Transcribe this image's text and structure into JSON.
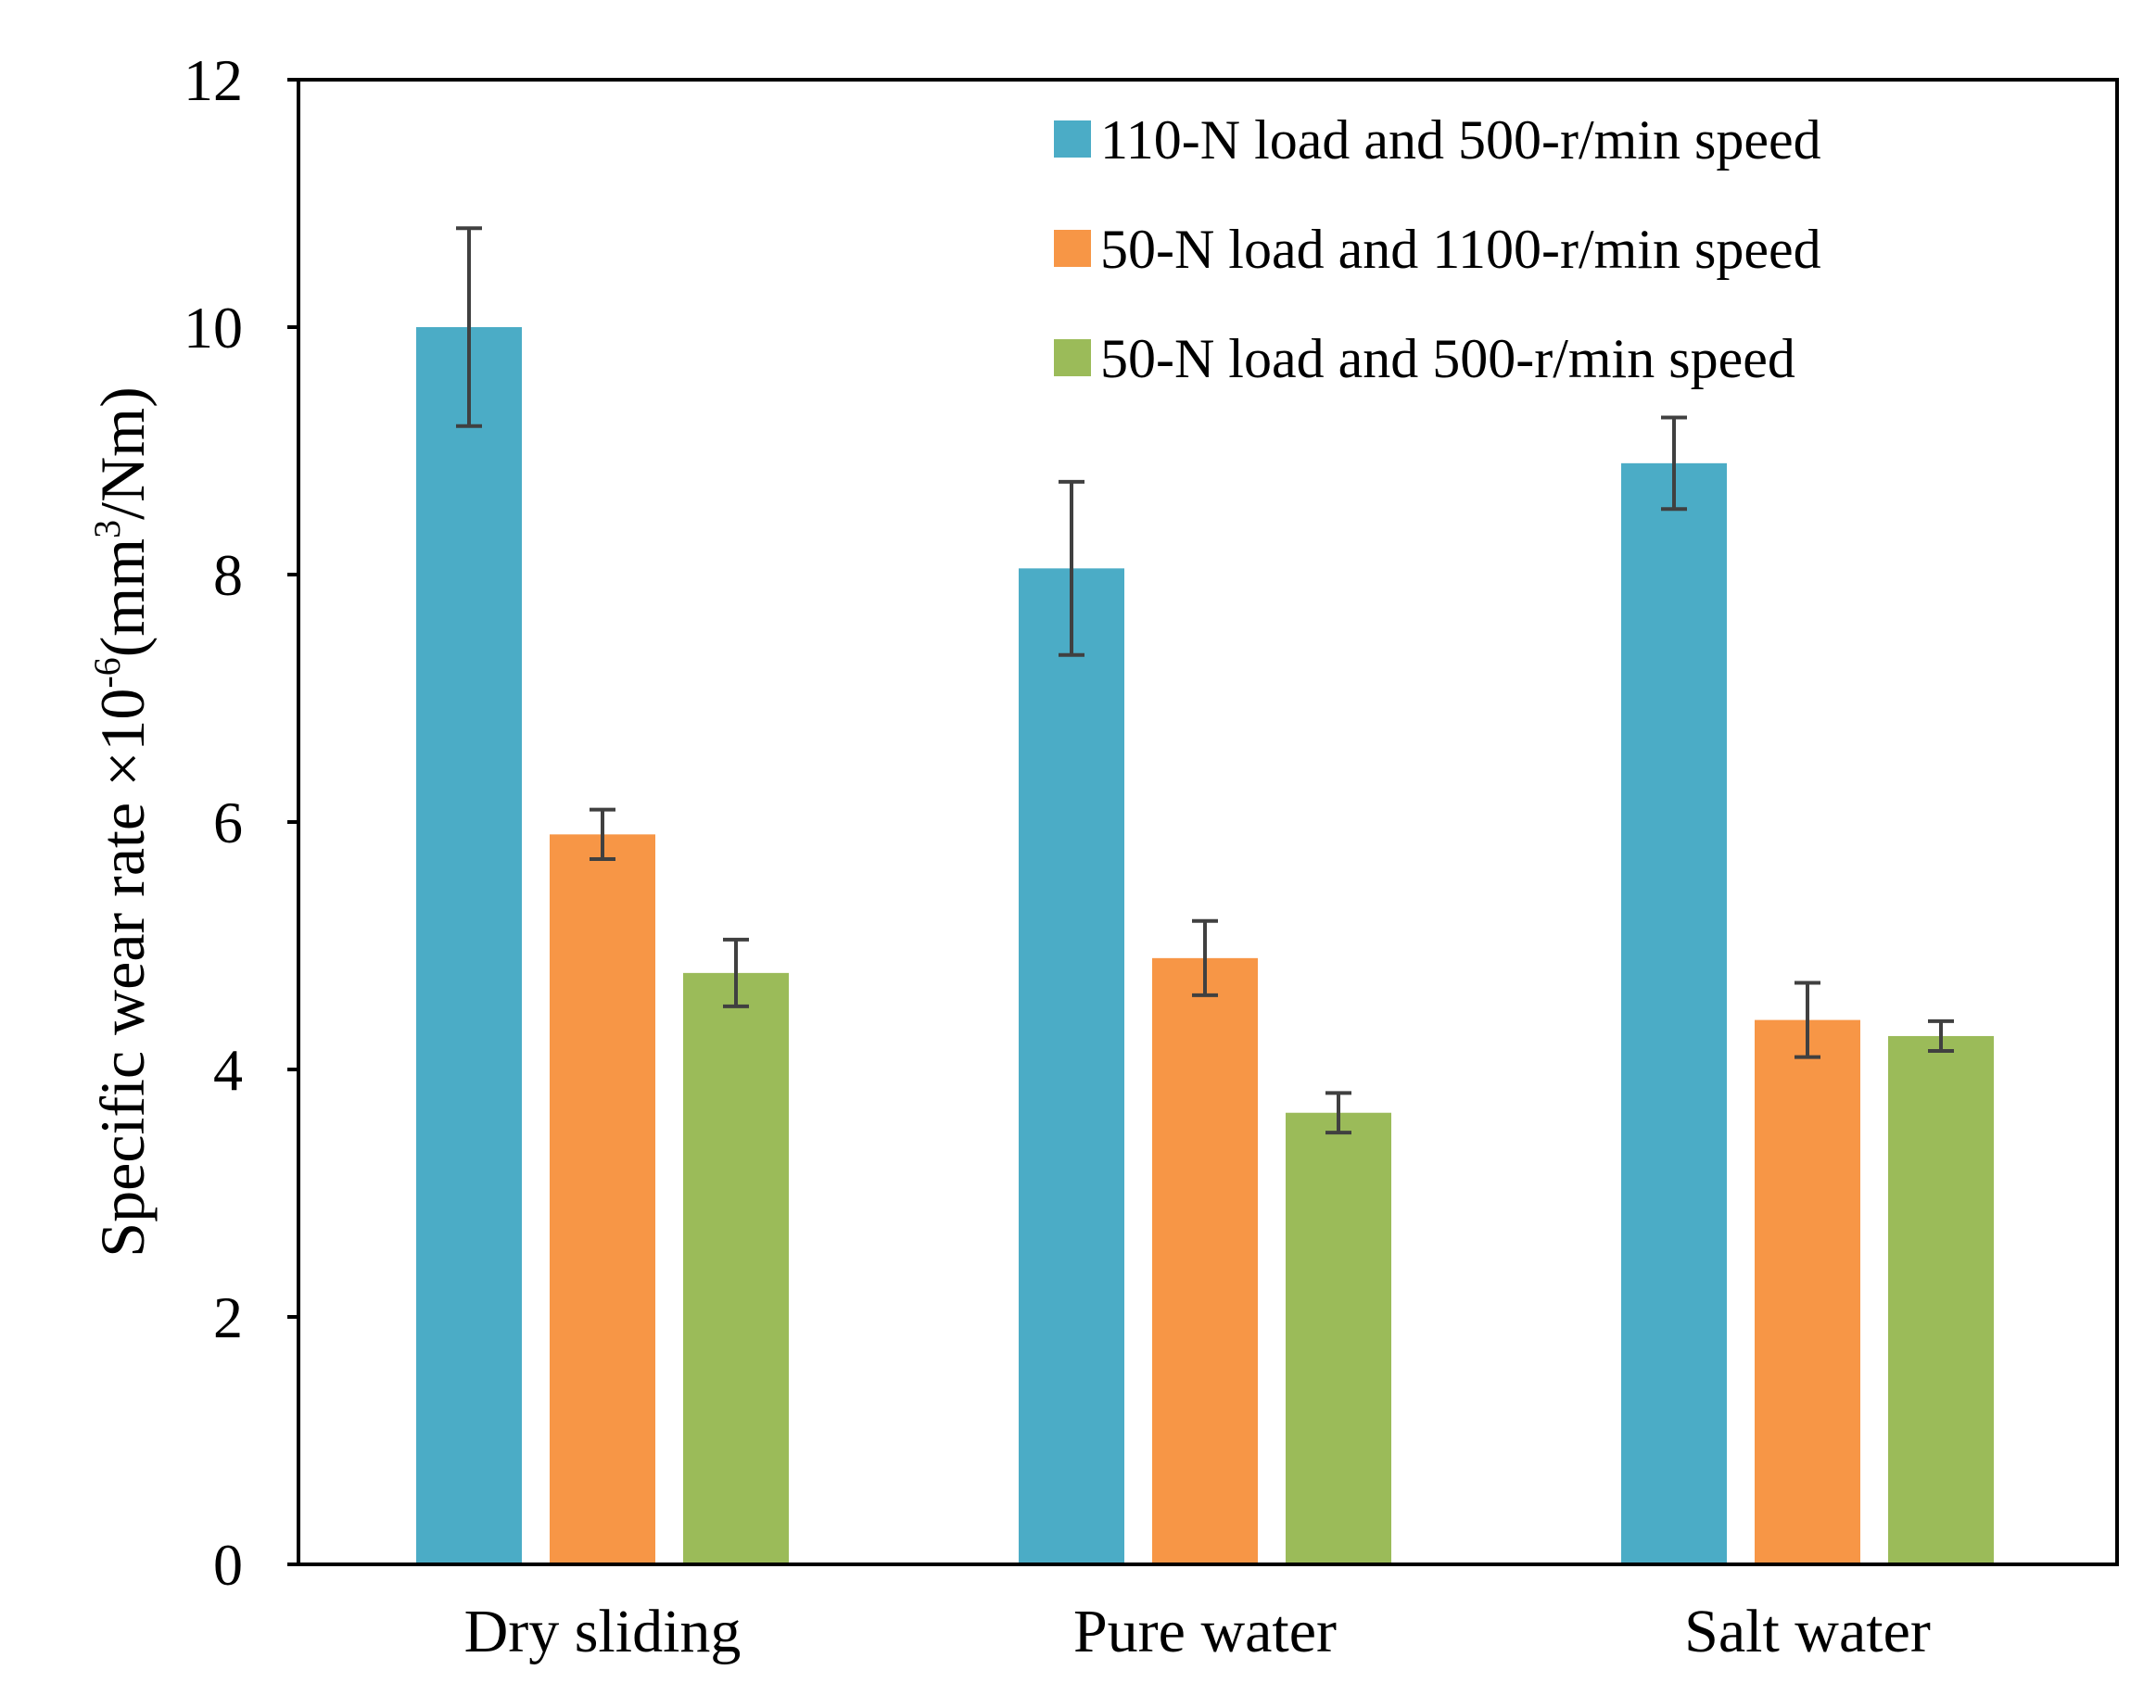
{
  "chart_data": {
    "type": "bar",
    "title": "",
    "xlabel": "",
    "ylabel": {
      "prefix": "Specific wear rate ×10",
      "exponent": "-6",
      "unit_open": "(mm",
      "unit_exponent": "3",
      "unit_close": "/Nm)"
    },
    "ylim": [
      0,
      12
    ],
    "yticks": [
      "0",
      "2",
      "4",
      "6",
      "8",
      "10",
      "12"
    ],
    "categories": [
      "Dry sliding",
      "Pure water",
      "Salt water"
    ],
    "legend_position": "top-right",
    "grid": false,
    "series": [
      {
        "name": "110-N load and 500-r/min speed",
        "color": "#4BACC6",
        "values": [
          10.0,
          8.05,
          8.9
        ],
        "errors": [
          0.8,
          0.7,
          0.37
        ]
      },
      {
        "name": "50-N load and 1100-r/min speed",
        "color": "#F79646",
        "values": [
          5.9,
          4.9,
          4.4
        ],
        "errors": [
          0.2,
          0.3,
          0.3
        ]
      },
      {
        "name": "50-N load and 500-r/min speed",
        "color": "#9BBB59",
        "values": [
          4.78,
          3.65,
          4.27
        ],
        "errors": [
          0.27,
          0.16,
          0.12
        ]
      }
    ],
    "error_bar_color": "#404040"
  }
}
